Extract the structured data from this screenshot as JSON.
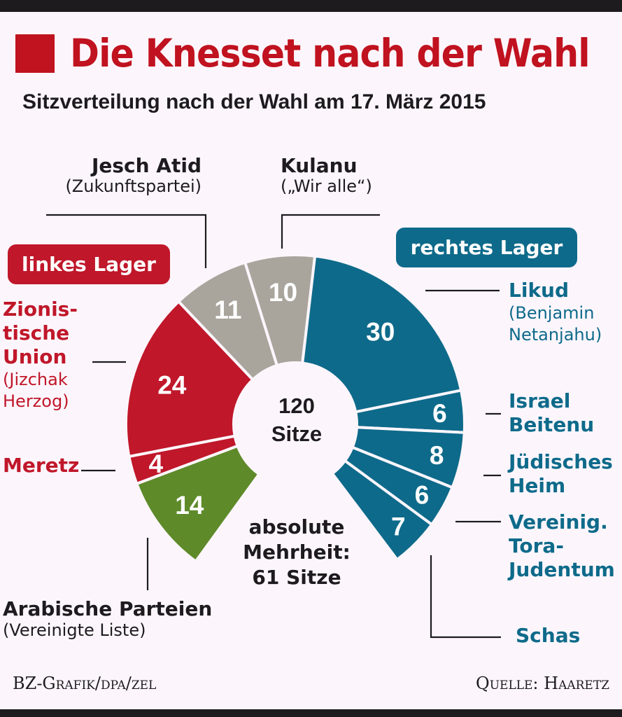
{
  "header": {
    "title": "Die Knesset nach der Wahl",
    "subtitle": "Sitzverteilung nach der Wahl am  17. März 2015"
  },
  "camps": {
    "left": "linkes Lager",
    "right": "rechtes Lager"
  },
  "center": {
    "total": "120",
    "unit": "Sitze"
  },
  "majority": {
    "line1": "absolute",
    "line2": "Mehrheit:",
    "line3": "61 Sitze"
  },
  "footer": {
    "credit": "BZ-Grafik/dpa/zel",
    "source": "Quelle: Haaretz"
  },
  "colors": {
    "left": "#c0172a",
    "center": "#a9a59c",
    "right": "#0e6a8a",
    "arab": "#5e8a2a",
    "title": "#c0121f"
  },
  "chart_data": {
    "type": "pie",
    "variant": "donut-horseshoe",
    "title": "Die Knesset nach der Wahl",
    "subtitle": "Sitzverteilung nach der Wahl am 17. März 2015",
    "total": 120,
    "series": [
      {
        "name": "Arabische Parteien",
        "sub": "(Vereinigte Liste)",
        "value": 14,
        "color": "#5e8a2a",
        "label": "14"
      },
      {
        "name": "Meretz",
        "sub": "",
        "value": 4,
        "color": "#c0172a",
        "label": "4"
      },
      {
        "name": "Zionistische Union",
        "sub": "(Jizchak Herzog)",
        "value": 24,
        "color": "#c0172a",
        "label": "24"
      },
      {
        "name": "Jesch Atid",
        "sub": "(Zukunftspartei)",
        "value": 11,
        "color": "#a9a59c",
        "label": "11"
      },
      {
        "name": "Kulanu",
        "sub": "(„Wir alle“)",
        "value": 10,
        "color": "#a9a59c",
        "label": "10"
      },
      {
        "name": "Likud",
        "sub": "(Benjamin Netanjahu)",
        "value": 30,
        "color": "#0e6a8a",
        "label": "30"
      },
      {
        "name": "Israel Beitenu",
        "sub": "",
        "value": 6,
        "color": "#0e6a8a",
        "label": "6"
      },
      {
        "name": "Jüdisches Heim",
        "sub": "",
        "value": 8,
        "color": "#0e6a8a",
        "label": "8"
      },
      {
        "name": "Vereinig. Tora-Judentum",
        "sub": "",
        "value": 6,
        "color": "#0e6a8a",
        "label": "6"
      },
      {
        "name": "Schas",
        "sub": "",
        "value": 7,
        "color": "#0e6a8a",
        "label": "7"
      }
    ],
    "labels": {
      "jesch_atid": {
        "name": "Jesch Atid",
        "sub": "(Zukunftspartei)"
      },
      "kulanu": {
        "name": "Kulanu",
        "sub": "(„Wir alle“)"
      },
      "zu": {
        "l1": "Zionis-",
        "l2": "tische",
        "l3": "Union",
        "s1": "(Jizchak",
        "s2": "Herzog)"
      },
      "meretz": {
        "name": "Meretz"
      },
      "arab": {
        "name": "Arabische Parteien",
        "sub": "(Vereinigte Liste)"
      },
      "likud": {
        "name": "Likud",
        "s1": "(Benjamin",
        "s2": "Netanjahu)"
      },
      "ib": {
        "l1": "Israel",
        "l2": "Beitenu"
      },
      "jh": {
        "l1": "Jüdisches",
        "l2": "Heim"
      },
      "utj": {
        "l1": "Vereinig.",
        "l2": "Tora-",
        "l3": "Judentum"
      },
      "schas": {
        "name": "Schas"
      }
    }
  }
}
